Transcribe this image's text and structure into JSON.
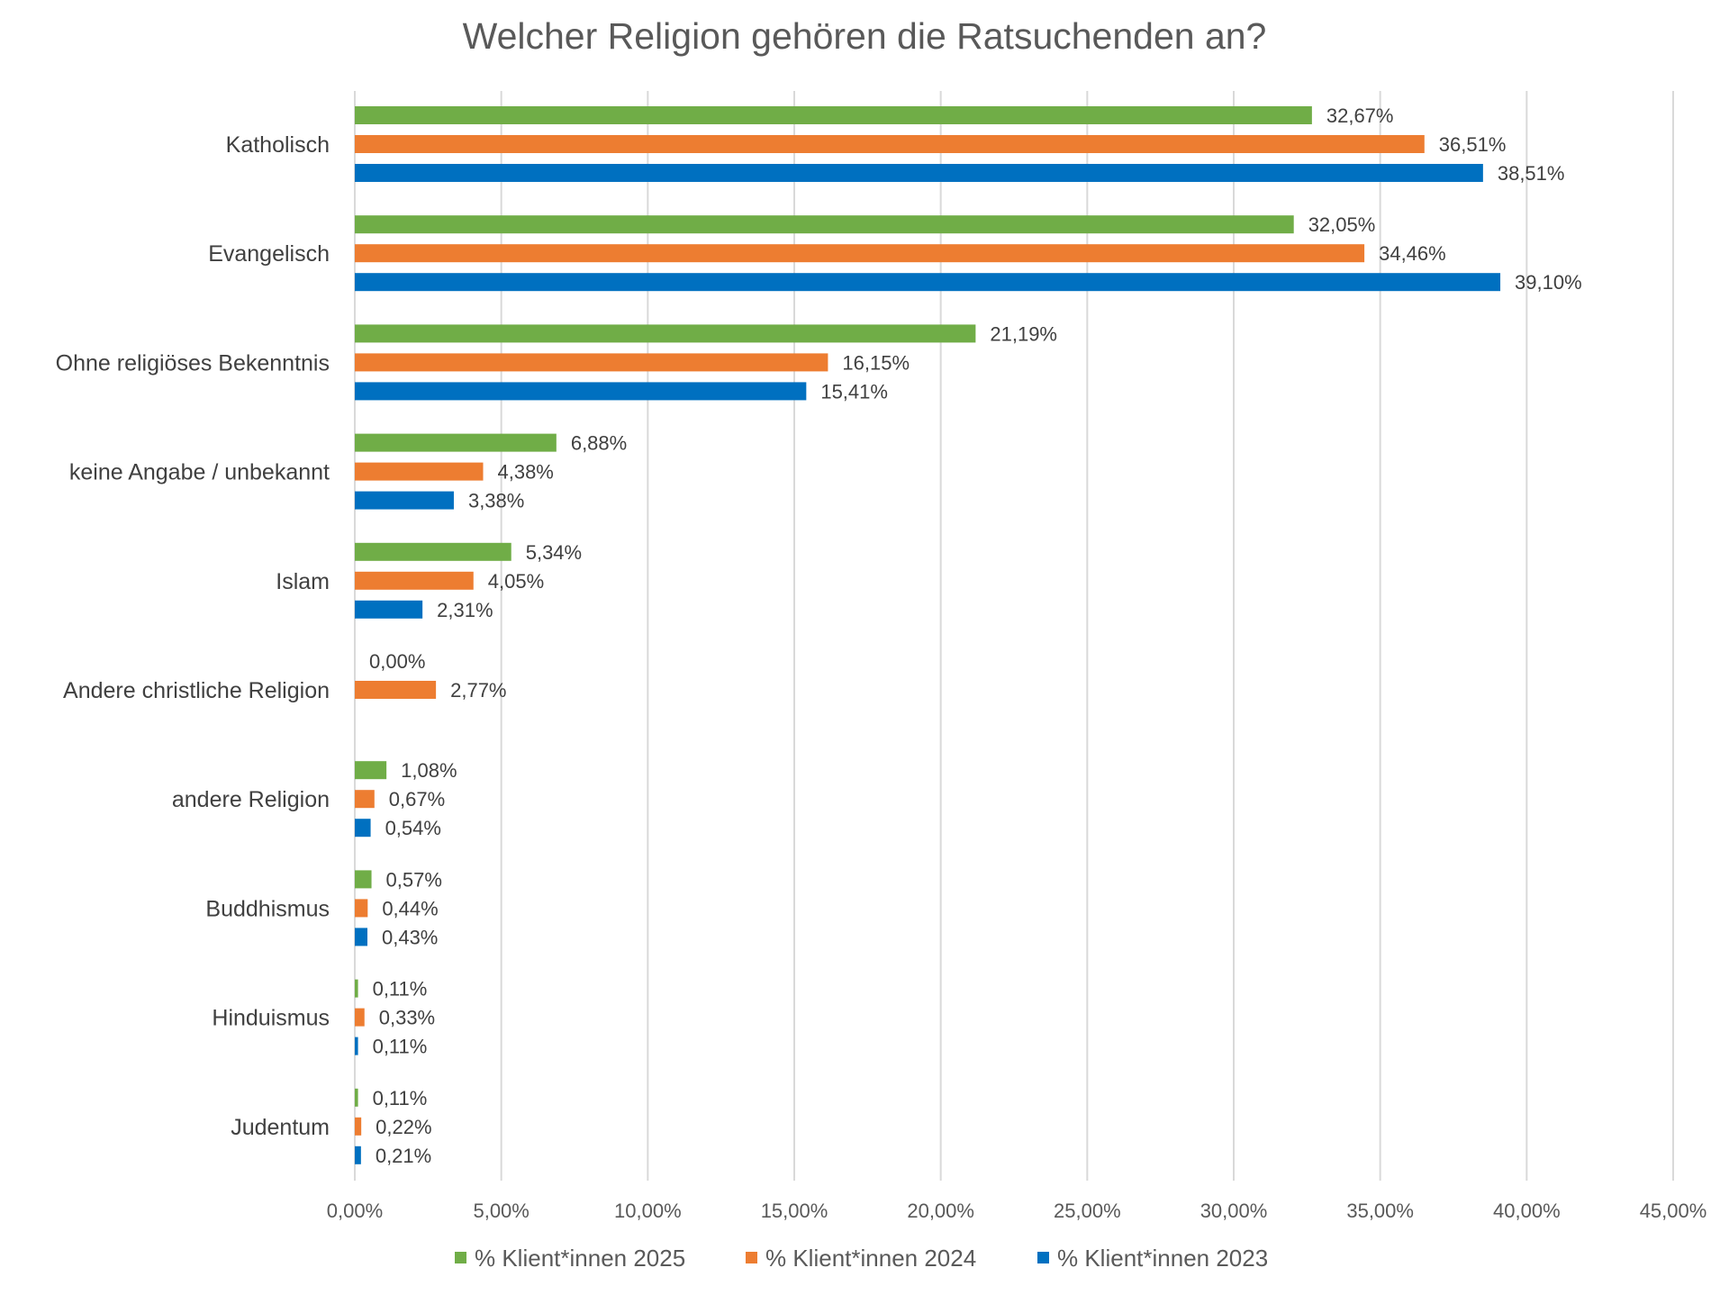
{
  "chart_data": {
    "type": "bar",
    "orientation": "horizontal",
    "title": "Welcher Religion gehören die Ratsuchenden an?",
    "categories": [
      "Katholisch",
      "Evangelisch",
      "Ohne religiöses Bekenntnis",
      "keine Angabe / unbekannt",
      "Islam",
      "Andere christliche Religion",
      "andere Religion",
      "Buddhismus",
      "Hinduismus",
      "Judentum"
    ],
    "series": [
      {
        "name": "% Klient*innen 2025",
        "color": "#70AD47",
        "values": [
          32.67,
          32.05,
          21.19,
          6.88,
          5.34,
          0.0,
          1.08,
          0.57,
          0.11,
          0.11
        ],
        "labels": [
          "32,67%",
          "32,05%",
          "21,19%",
          "6,88%",
          "5,34%",
          "0,00%",
          "1,08%",
          "0,57%",
          "0,11%",
          "0,11%"
        ]
      },
      {
        "name": "% Klient*innen 2024",
        "color": "#ED7D31",
        "values": [
          36.51,
          34.46,
          16.15,
          4.38,
          4.05,
          2.77,
          0.67,
          0.44,
          0.33,
          0.22
        ],
        "labels": [
          "36,51%",
          "34,46%",
          "16,15%",
          "4,38%",
          "4,05%",
          "2,77%",
          "0,67%",
          "0,44%",
          "0,33%",
          "0,22%"
        ]
      },
      {
        "name": "% Klient*innen 2023",
        "color": "#0070C0",
        "values": [
          38.51,
          39.1,
          15.41,
          3.38,
          2.31,
          null,
          0.54,
          0.43,
          0.11,
          0.21
        ],
        "labels": [
          "38,51%",
          "39,10%",
          "15,41%",
          "3,38%",
          "2,31%",
          null,
          "0,54%",
          "0,43%",
          "0,11%",
          "0,21%"
        ]
      }
    ],
    "xlim": [
      0,
      45
    ],
    "xticks": [
      0,
      5,
      10,
      15,
      20,
      25,
      30,
      35,
      40,
      45
    ],
    "xtick_labels": [
      "0,00%",
      "5,00%",
      "10,00%",
      "15,00%",
      "20,00%",
      "25,00%",
      "30,00%",
      "35,00%",
      "40,00%",
      "45,00%"
    ],
    "grid": true,
    "legend_position": "bottom",
    "xlabel": "",
    "ylabel": ""
  }
}
